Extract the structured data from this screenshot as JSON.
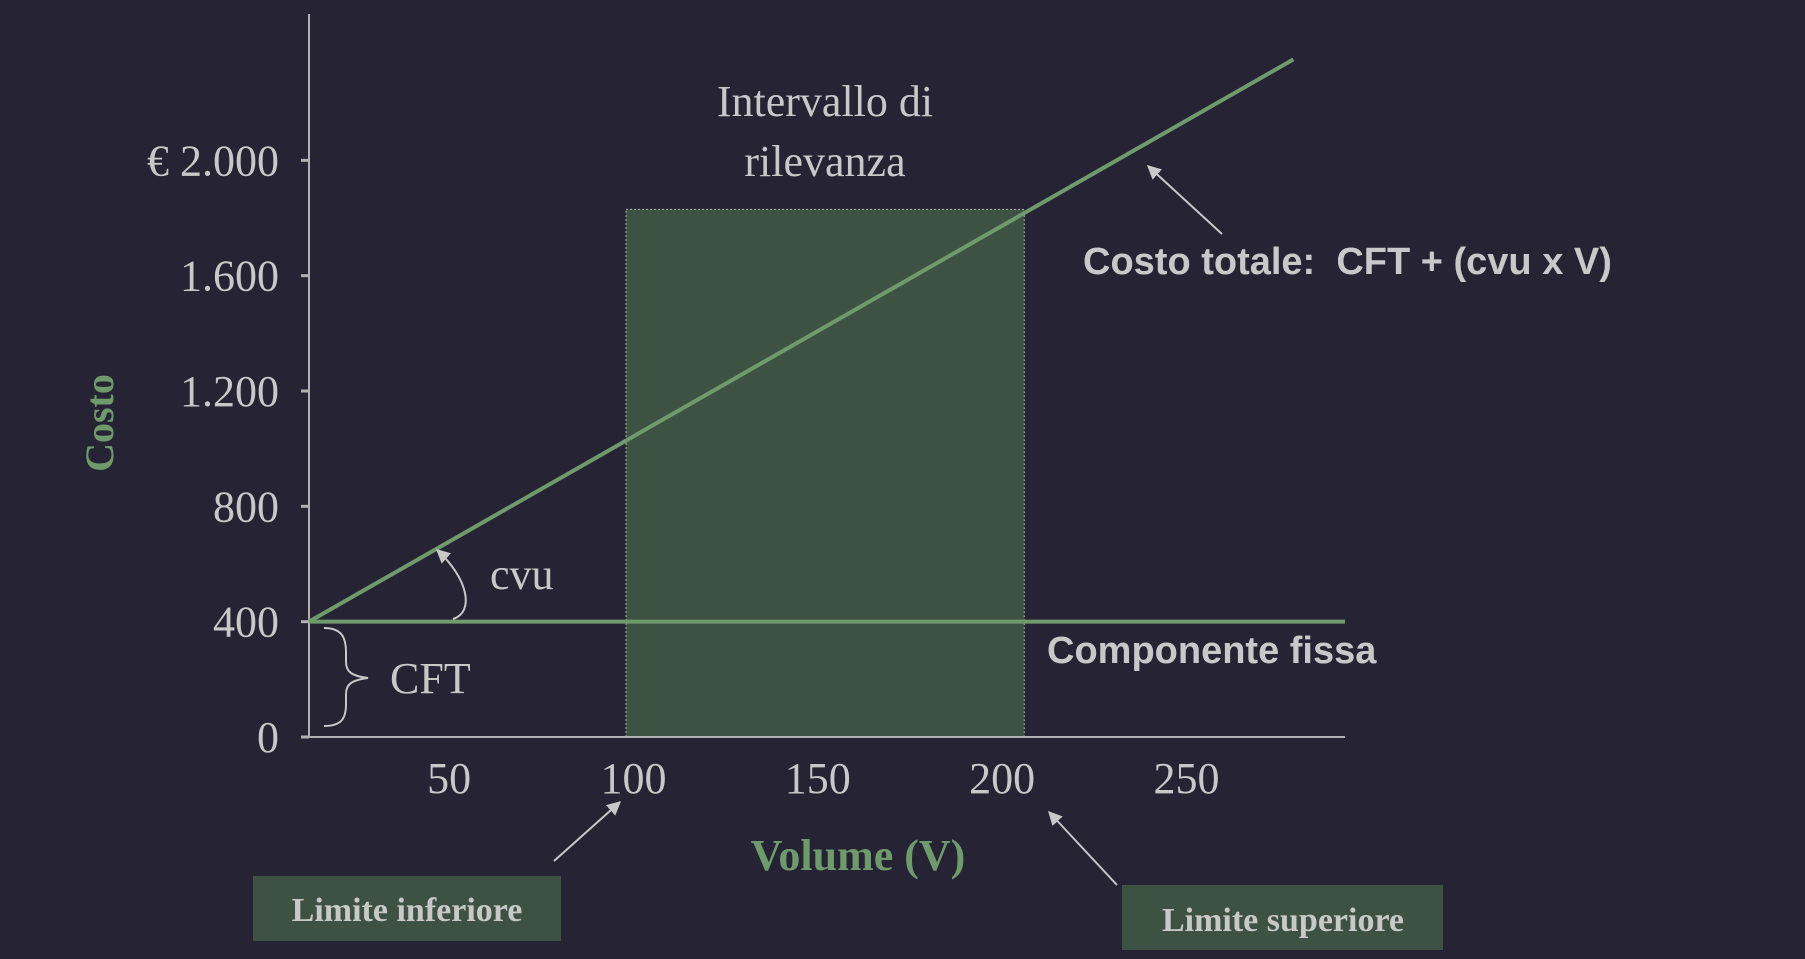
{
  "chart_data": {
    "type": "line",
    "title": "",
    "xlabel": "Volume (V)",
    "ylabel": "Costo",
    "xlim": [
      12,
      293
    ],
    "ylim": [
      0,
      2400
    ],
    "x_ticks": [
      50,
      100,
      150,
      200,
      250
    ],
    "x_tick_labels": [
      "50",
      "100",
      "150",
      "200",
      "250"
    ],
    "y_ticks": [
      0,
      400,
      800,
      1200,
      1600,
      2000
    ],
    "y_tick_labels": [
      "0",
      "400",
      "800",
      "1.200",
      "1.600",
      "€ 2.000"
    ],
    "grid": false,
    "series": [
      {
        "name": "Costo totale:  CFT + (cvu x V)",
        "x": [
          12,
          279
        ],
        "y": [
          400,
          2350
        ]
      },
      {
        "name": "Componente fissa",
        "x": [
          12,
          293
        ],
        "y": [
          400,
          400
        ]
      }
    ],
    "relevant_range": {
      "x": [
        98,
        206
      ],
      "y_top": 1830,
      "label_line1": "Intervallo di",
      "label_line2": "rilevanza"
    },
    "annotations": {
      "cvu": "cvu",
      "cft": "CFT",
      "lower_limit": "Limite inferiore",
      "upper_limit": "Limite superiore"
    },
    "colors": {
      "background": "#252334",
      "line": "#6f9a6c",
      "axis_label": "#6f9a6c",
      "region_fill": "#3d5242",
      "text": "#c8c8c8",
      "box_fill": "#3d5242"
    }
  }
}
